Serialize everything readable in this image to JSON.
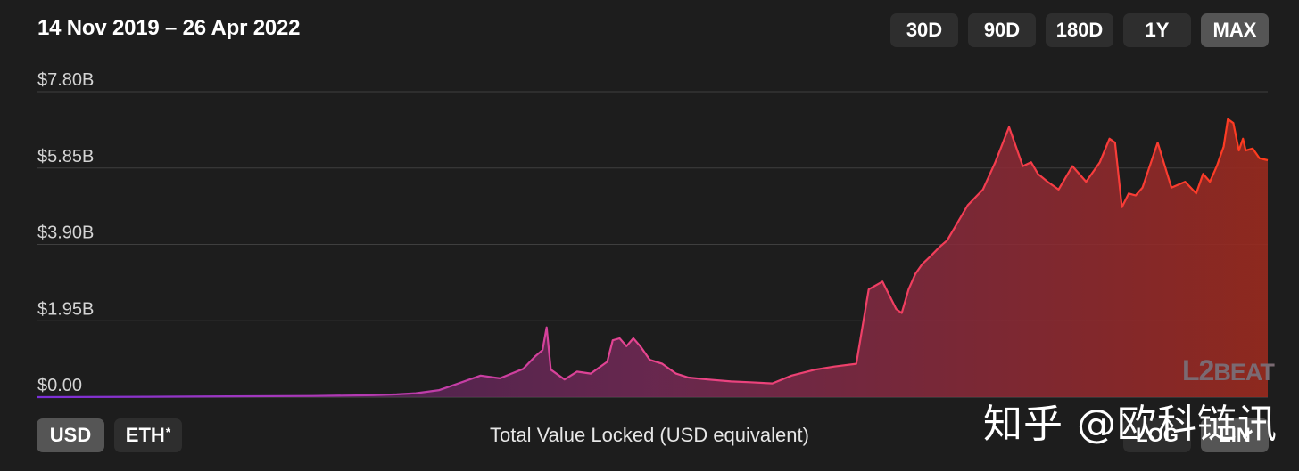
{
  "header": {
    "date_range": "14 Nov 2019 – 26 Apr 2022"
  },
  "range_buttons": [
    {
      "label": "30D",
      "active": false
    },
    {
      "label": "90D",
      "active": false
    },
    {
      "label": "180D",
      "active": false
    },
    {
      "label": "1Y",
      "active": false
    },
    {
      "label": "MAX",
      "active": true
    }
  ],
  "currency_buttons": [
    {
      "label": "USD",
      "active": true
    },
    {
      "label": "ETH",
      "suffix": "*",
      "active": false
    }
  ],
  "scale_buttons": [
    {
      "label": "LOG",
      "active": false
    },
    {
      "label": "LIN",
      "active": true
    }
  ],
  "caption": "Total Value Locked (USD equivalent)",
  "logo": {
    "l": "L",
    "two": "2",
    "beat": "BEAT"
  },
  "watermark_text": "知乎 @欧科链讯",
  "colors": {
    "start": "#8a2be2",
    "mid": "#e0408a",
    "end": "#ff3a1a",
    "grid": "#3f3f3f",
    "background": "#1d1d1d"
  },
  "chart_data": {
    "type": "area",
    "title": "",
    "xlabel": "",
    "ylabel": "",
    "x_range": [
      "2019-11-14",
      "2022-04-26"
    ],
    "ylim": [
      0,
      7.8
    ],
    "yticks": [
      0,
      1.95,
      3.9,
      5.85,
      7.8
    ],
    "ytick_labels": [
      "$0.00",
      "$1.95B",
      "$3.90B",
      "$5.85B",
      "$7.80B"
    ],
    "grid": true,
    "legend": "none",
    "series": [
      {
        "x": [
          "2019-11-14",
          "2020-02-01",
          "2020-04-01",
          "2020-06-01",
          "2020-07-15",
          "2020-08-01",
          "2020-08-15",
          "2020-09-01",
          "2020-09-15",
          "2020-10-01",
          "2020-10-15",
          "2020-11-01",
          "2020-11-10",
          "2020-11-15",
          "2020-11-18",
          "2020-11-21",
          "2020-12-01",
          "2020-12-10",
          "2020-12-20",
          "2021-01-01",
          "2021-01-05",
          "2021-01-10",
          "2021-01-15",
          "2021-01-20",
          "2021-01-25",
          "2021-02-01",
          "2021-02-10",
          "2021-02-20",
          "2021-03-01",
          "2021-03-15",
          "2021-04-01",
          "2021-04-15",
          "2021-05-01",
          "2021-05-15",
          "2021-06-01",
          "2021-06-15",
          "2021-07-01",
          "2021-07-10",
          "2021-07-20",
          "2021-07-30",
          "2021-08-03",
          "2021-08-08",
          "2021-08-13",
          "2021-08-18",
          "2021-08-24",
          "2021-08-31",
          "2021-09-05",
          "2021-09-10",
          "2021-09-20",
          "2021-10-01",
          "2021-10-10",
          "2021-10-20",
          "2021-10-30",
          "2021-11-05",
          "2021-11-10",
          "2021-11-17",
          "2021-11-25",
          "2021-12-05",
          "2021-12-15",
          "2021-12-25",
          "2022-01-01",
          "2022-01-05",
          "2022-01-10",
          "2022-01-15",
          "2022-01-20",
          "2022-01-25",
          "2022-02-05",
          "2022-02-15",
          "2022-02-25",
          "2022-03-05",
          "2022-03-10",
          "2022-03-15",
          "2022-03-20",
          "2022-03-25",
          "2022-03-28",
          "2022-04-01",
          "2022-04-05",
          "2022-04-08",
          "2022-04-10",
          "2022-04-15",
          "2022-04-20",
          "2022-04-26"
        ],
        "values": [
          0.0,
          0.01,
          0.02,
          0.03,
          0.05,
          0.07,
          0.1,
          0.18,
          0.35,
          0.55,
          0.48,
          0.72,
          1.05,
          1.2,
          1.78,
          0.7,
          0.45,
          0.65,
          0.6,
          0.9,
          1.45,
          1.5,
          1.3,
          1.5,
          1.3,
          0.95,
          0.85,
          0.6,
          0.5,
          0.45,
          0.4,
          0.38,
          0.35,
          0.55,
          0.7,
          0.78,
          0.85,
          2.75,
          2.95,
          2.25,
          2.15,
          2.75,
          3.15,
          3.4,
          3.6,
          3.85,
          4.0,
          4.3,
          4.9,
          5.3,
          6.0,
          6.9,
          5.9,
          6.0,
          5.7,
          5.5,
          5.3,
          5.9,
          5.5,
          6.0,
          6.6,
          6.5,
          4.85,
          5.2,
          5.15,
          5.35,
          6.5,
          5.35,
          5.5,
          5.2,
          5.7,
          5.5,
          5.9,
          6.4,
          7.1,
          7.0,
          6.3,
          6.6,
          6.3,
          6.35,
          6.1,
          6.05
        ]
      }
    ]
  }
}
